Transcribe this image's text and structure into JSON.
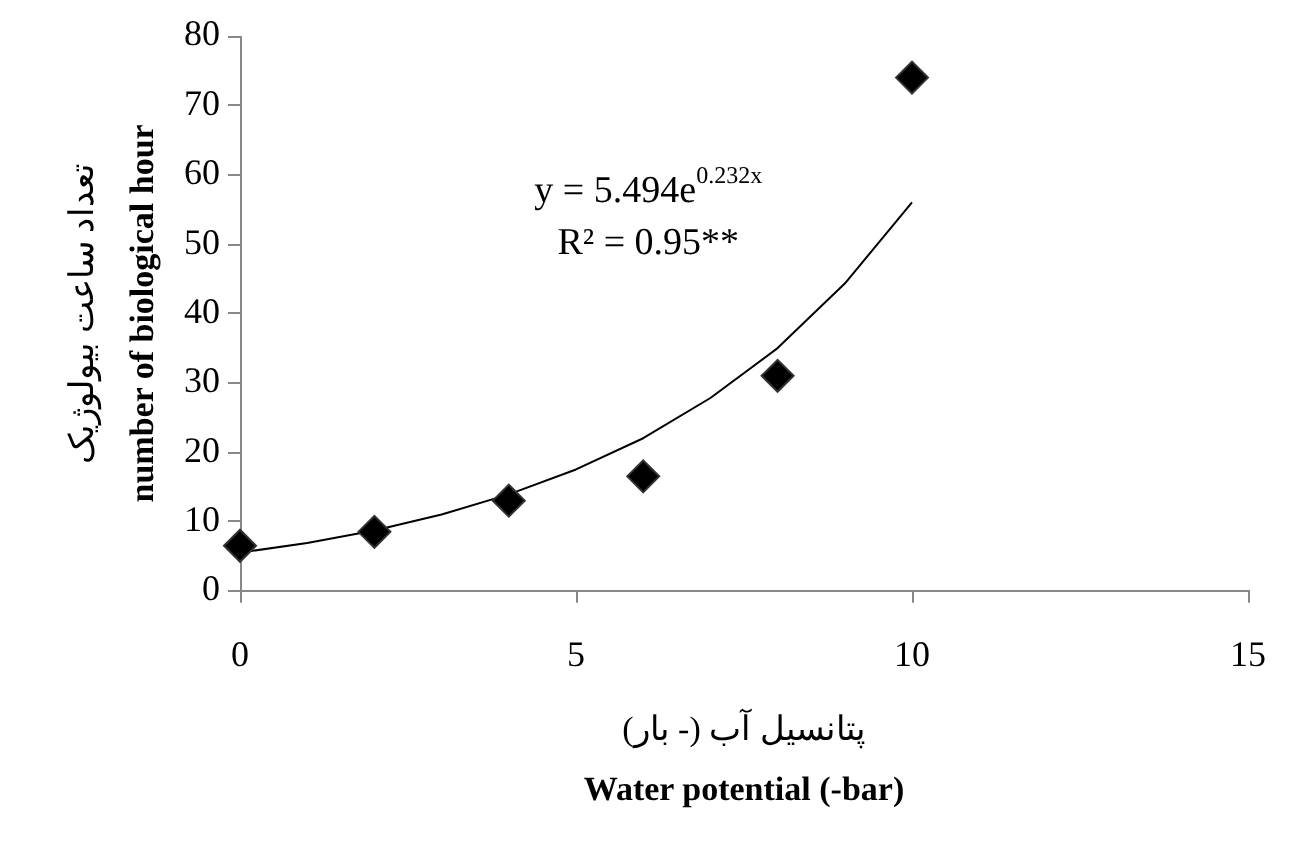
{
  "chart_data": {
    "type": "scatter",
    "xlabel": "پتانسیل آب (- بار)\nWater potential (-bar)",
    "ylabel": "تعداد ساعت بیولوژیک\nnumber of biological hour",
    "xlim": [
      0,
      15
    ],
    "xticks": [
      0,
      5,
      10,
      15
    ],
    "ylim": [
      0,
      80
    ],
    "yticks": [
      0,
      10,
      20,
      30,
      40,
      50,
      60,
      70,
      80
    ],
    "grid": false,
    "legend": false,
    "marker": "diamond",
    "series": [
      {
        "color": "#000000",
        "x": [
          0,
          2,
          4,
          6,
          8,
          10
        ],
        "values": [
          6.5,
          8.5,
          13,
          16.5,
          31,
          74
        ]
      },
      {
        "type": "line",
        "color": "#000000",
        "marker": "none",
        "line_style": "solid",
        "x": [
          0,
          1,
          2,
          3,
          4,
          5,
          6,
          7,
          8,
          9,
          10
        ],
        "values": [
          5.5,
          6.9,
          8.7,
          11,
          13.9,
          17.5,
          22,
          27.8,
          35,
          44.3,
          56
        ]
      }
    ],
    "annotations": [
      "y = 5.494e$^{0.232x}$",
      "R² = 0.95**"
    ]
  }
}
